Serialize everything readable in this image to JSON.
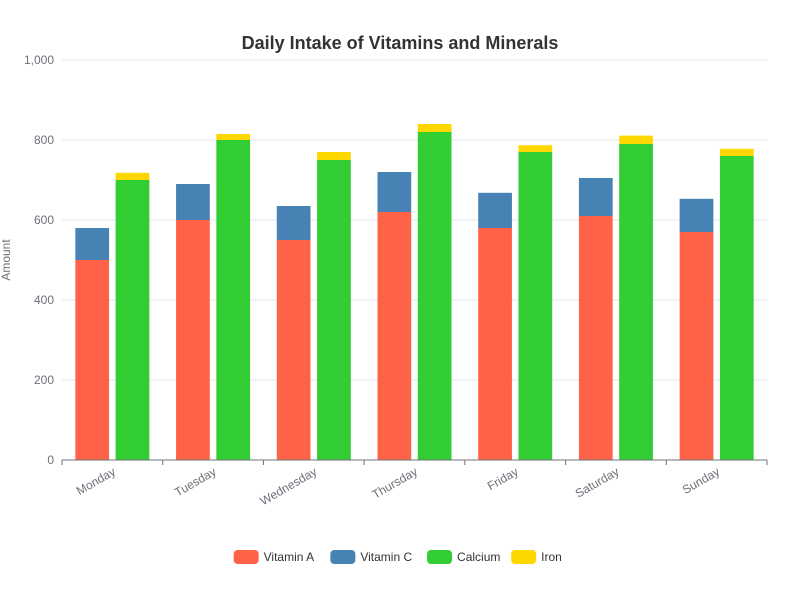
{
  "chart_data": {
    "type": "bar",
    "title": "Daily Intake of Vitamins and Minerals",
    "xlabel": "",
    "ylabel": "Amount",
    "ylim": [
      0,
      1000
    ],
    "yticks": [
      0,
      200,
      400,
      600,
      800,
      1000
    ],
    "ytick_labels": [
      "0",
      "200",
      "400",
      "600",
      "800",
      "1,000"
    ],
    "categories": [
      "Monday",
      "Tuesday",
      "Wednesday",
      "Thursday",
      "Friday",
      "Saturday",
      "Sunday"
    ],
    "stacked": true,
    "series": [
      {
        "name": "Vitamin A",
        "stack": "vitamins",
        "color": "#ff6347",
        "values": [
          500,
          600,
          550,
          620,
          580,
          610,
          570
        ]
      },
      {
        "name": "Vitamin C",
        "stack": "vitamins",
        "color": "#4682b4",
        "values": [
          80,
          90,
          85,
          100,
          88,
          95,
          83
        ]
      },
      {
        "name": "Calcium",
        "stack": "minerals",
        "color": "#32cd32",
        "values": [
          700,
          800,
          750,
          820,
          770,
          790,
          760
        ]
      },
      {
        "name": "Iron",
        "stack": "minerals",
        "color": "#ffd700",
        "values": [
          18,
          15,
          20,
          20,
          17,
          21,
          18
        ]
      }
    ],
    "grid": true,
    "legend_position": "bottom-center"
  }
}
